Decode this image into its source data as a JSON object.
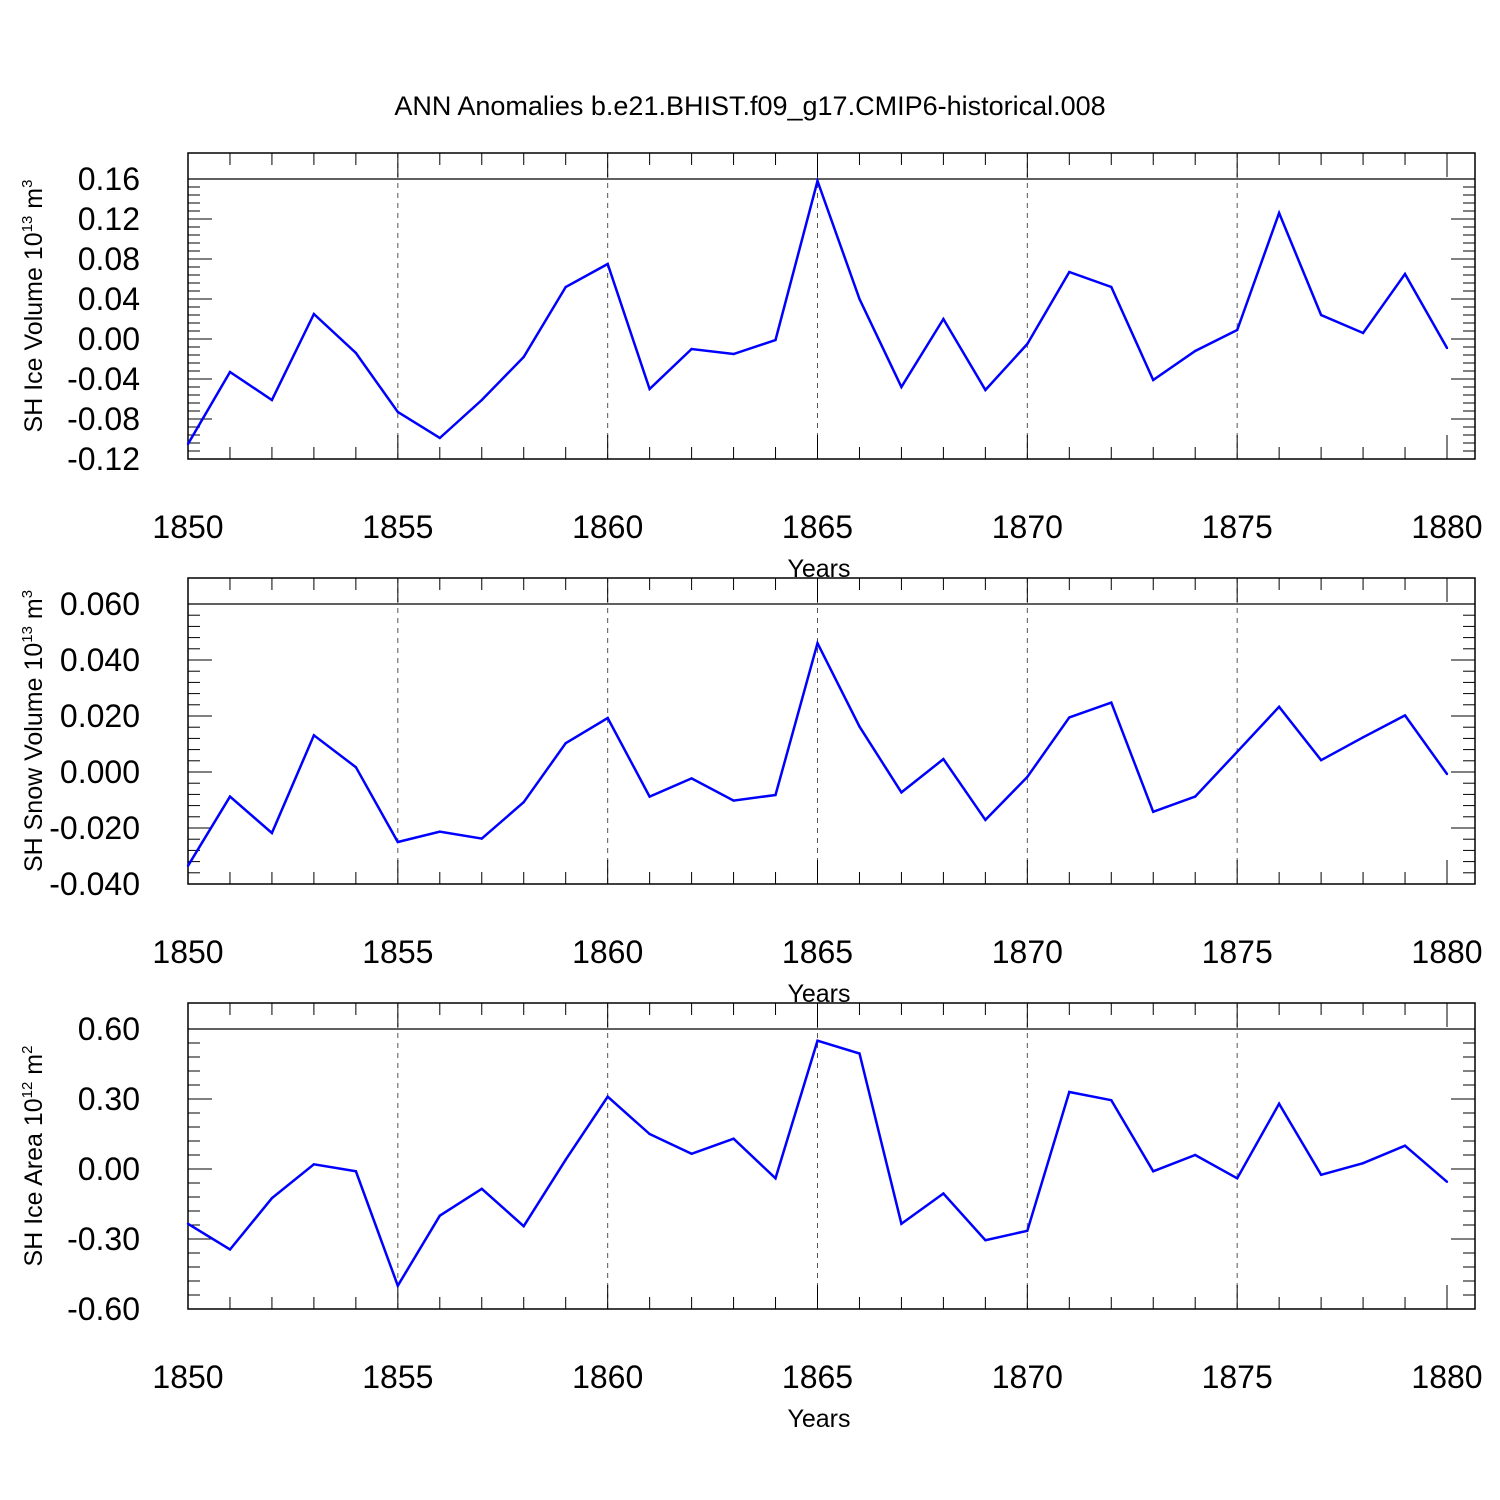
{
  "colors": {
    "line": "#0000ff",
    "axis": "#000000",
    "refline": "#555555"
  },
  "chart_data": [
    {
      "type": "line",
      "title": "ANN Anomalies b.e21.BHIST.f09_g17.CMIP6-historical.008",
      "xlabel": "Years",
      "ylabel": {
        "main": "SH Ice Volume 10",
        "exp": "13",
        "unit": " m",
        "unit_exp": "3"
      },
      "xlim": [
        1850,
        1880
      ],
      "ylim": [
        -0.12,
        0.16
      ],
      "xticks": [
        "1850",
        "1855",
        "1860",
        "1865",
        "1870",
        "1875",
        "1880"
      ],
      "yticks": [
        "-0.12",
        "-0.08",
        "-0.04",
        "0.00",
        "0.04",
        "0.08",
        "0.12",
        "0.16"
      ],
      "y_minor_step": 0.008,
      "reference_lines": {
        "y": [
          0.16
        ],
        "x": [
          1855,
          1860,
          1865,
          1870,
          1875
        ]
      },
      "series": [
        {
          "x": [
            1850,
            1851,
            1852,
            1853,
            1854,
            1855,
            1856,
            1857,
            1858,
            1859,
            1860,
            1861,
            1862,
            1863,
            1864,
            1865,
            1866,
            1867,
            1868,
            1869,
            1870,
            1871,
            1872,
            1873,
            1874,
            1875,
            1876,
            1877,
            1878,
            1879,
            1880
          ],
          "values": [
            -0.105,
            -0.033,
            -0.061,
            0.025,
            -0.014,
            -0.073,
            -0.099,
            -0.061,
            -0.018,
            0.052,
            0.075,
            -0.05,
            -0.01,
            -0.015,
            -0.001,
            0.158,
            0.04,
            -0.048,
            0.02,
            -0.051,
            -0.005,
            0.067,
            0.052,
            -0.041,
            -0.012,
            0.009,
            0.126,
            0.024,
            0.006,
            0.065,
            -0.009
          ]
        }
      ]
    },
    {
      "type": "line",
      "xlabel": "Years",
      "ylabel": {
        "main": "SH Snow Volume 10",
        "exp": "13",
        "unit": " m",
        "unit_exp": "3"
      },
      "xlim": [
        1850,
        1880
      ],
      "ylim": [
        -0.04,
        0.06
      ],
      "xticks": [
        "1850",
        "1855",
        "1860",
        "1865",
        "1870",
        "1875",
        "1880"
      ],
      "yticks": [
        "-0.040",
        "-0.020",
        "0.000",
        "0.020",
        "0.040",
        "0.060"
      ],
      "y_minor_step": 0.004,
      "reference_lines": {
        "y": [
          0.06
        ],
        "x": [
          1855,
          1860,
          1865,
          1870,
          1875
        ]
      },
      "series": [
        {
          "x": [
            1850,
            1851,
            1852,
            1853,
            1854,
            1855,
            1856,
            1857,
            1858,
            1859,
            1860,
            1861,
            1862,
            1863,
            1864,
            1865,
            1866,
            1867,
            1868,
            1869,
            1870,
            1871,
            1872,
            1873,
            1874,
            1875,
            1876,
            1877,
            1878,
            1879,
            1880
          ],
          "values": [
            -0.0335,
            -0.0088,
            -0.0218,
            0.0131,
            0.0017,
            -0.025,
            -0.0213,
            -0.0238,
            -0.0108,
            0.0103,
            0.0193,
            -0.0088,
            -0.0023,
            -0.0102,
            -0.0082,
            0.046,
            0.0162,
            -0.0073,
            0.0046,
            -0.0171,
            -0.0018,
            0.0195,
            0.0248,
            -0.0142,
            -0.0088,
            0.0072,
            0.0233,
            0.0042,
            0.0124,
            0.0202,
            -0.0007
          ]
        }
      ]
    },
    {
      "type": "line",
      "xlabel": "Years",
      "ylabel": {
        "main": "SH Ice Area 10",
        "exp": "12",
        "unit": " m",
        "unit_exp": "2"
      },
      "xlim": [
        1850,
        1880
      ],
      "ylim": [
        -0.6,
        0.6
      ],
      "xticks": [
        "1850",
        "1855",
        "1860",
        "1865",
        "1870",
        "1875",
        "1880"
      ],
      "yticks": [
        "-0.60",
        "-0.30",
        "0.00",
        "0.30",
        "0.60"
      ],
      "y_minor_step": 0.06,
      "reference_lines": {
        "y": [
          0.6
        ],
        "x": [
          1855,
          1860,
          1865,
          1870,
          1875
        ]
      },
      "series": [
        {
          "x": [
            1850,
            1851,
            1852,
            1853,
            1854,
            1855,
            1856,
            1857,
            1858,
            1859,
            1860,
            1861,
            1862,
            1863,
            1864,
            1865,
            1866,
            1867,
            1868,
            1869,
            1870,
            1871,
            1872,
            1873,
            1874,
            1875,
            1876,
            1877,
            1878,
            1879,
            1880
          ],
          "values": [
            -0.235,
            -0.345,
            -0.125,
            0.02,
            -0.01,
            -0.5,
            -0.2,
            -0.085,
            -0.245,
            0.04,
            0.31,
            0.15,
            0.065,
            0.13,
            -0.04,
            0.55,
            0.495,
            -0.235,
            -0.105,
            -0.305,
            -0.265,
            0.33,
            0.295,
            -0.01,
            0.06,
            -0.04,
            0.28,
            -0.025,
            0.025,
            0.1,
            -0.055
          ]
        }
      ]
    }
  ]
}
